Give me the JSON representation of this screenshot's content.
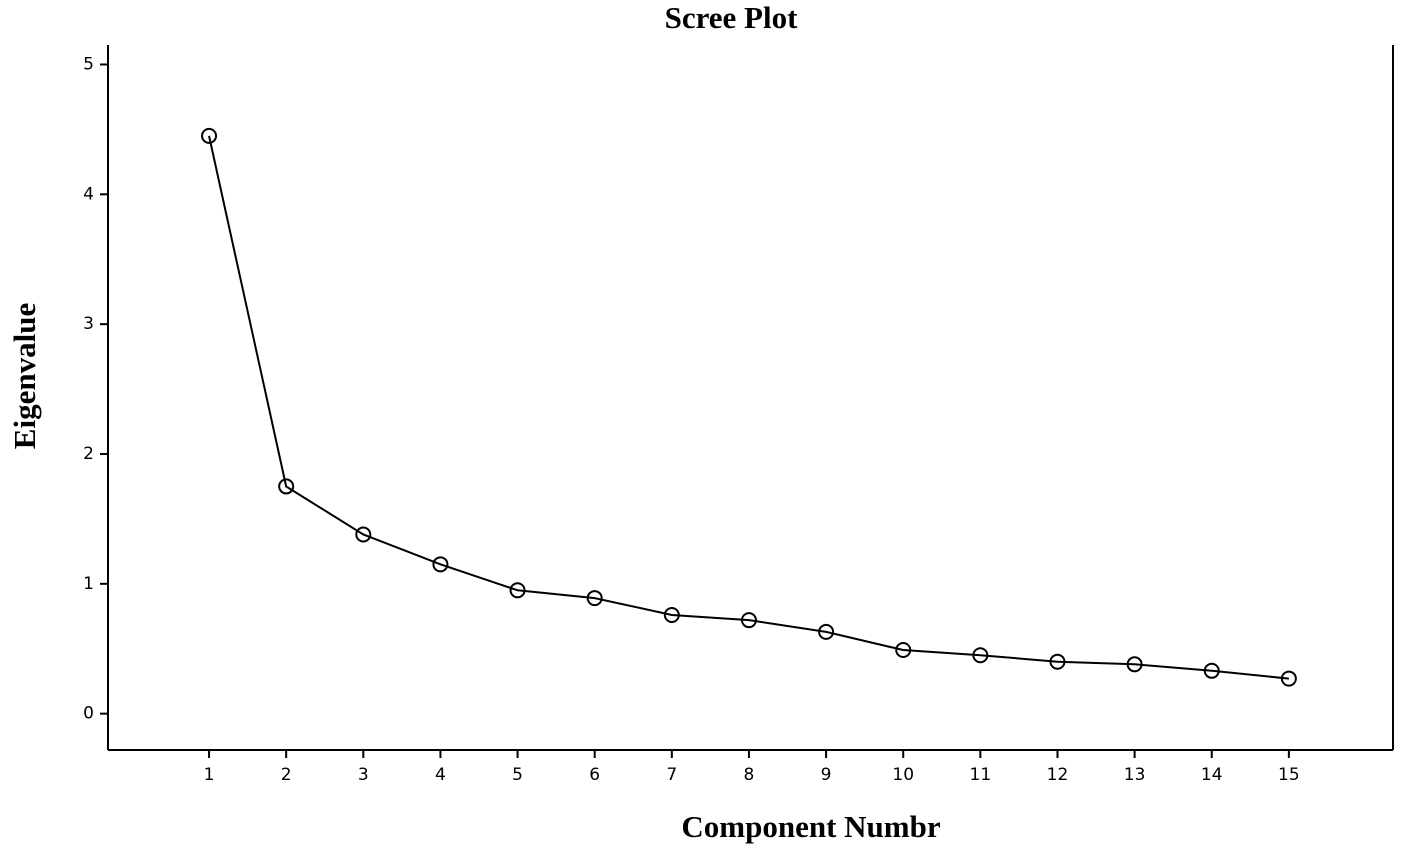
{
  "chart_data": {
    "type": "line",
    "title": "Scree Plot",
    "x_label": "Component Numbr",
    "y_label": "Eigenvalue",
    "x": [
      1,
      2,
      3,
      4,
      5,
      6,
      7,
      8,
      9,
      10,
      11,
      12,
      13,
      14,
      15
    ],
    "values": [
      4.45,
      1.75,
      1.38,
      1.15,
      0.95,
      0.89,
      0.76,
      0.72,
      0.63,
      0.49,
      0.45,
      0.4,
      0.38,
      0.33,
      0.27
    ],
    "color": "#000000",
    "xlim": [
      -0.31,
      16.35
    ],
    "xticks": [
      1,
      2,
      3,
      4,
      5,
      6,
      7,
      8,
      9,
      10,
      11,
      12,
      13,
      14,
      15
    ],
    "ylim": [
      -0.28,
      5.15
    ],
    "yticks": [
      0,
      1,
      2,
      3,
      4,
      5
    ],
    "grid": false
  }
}
